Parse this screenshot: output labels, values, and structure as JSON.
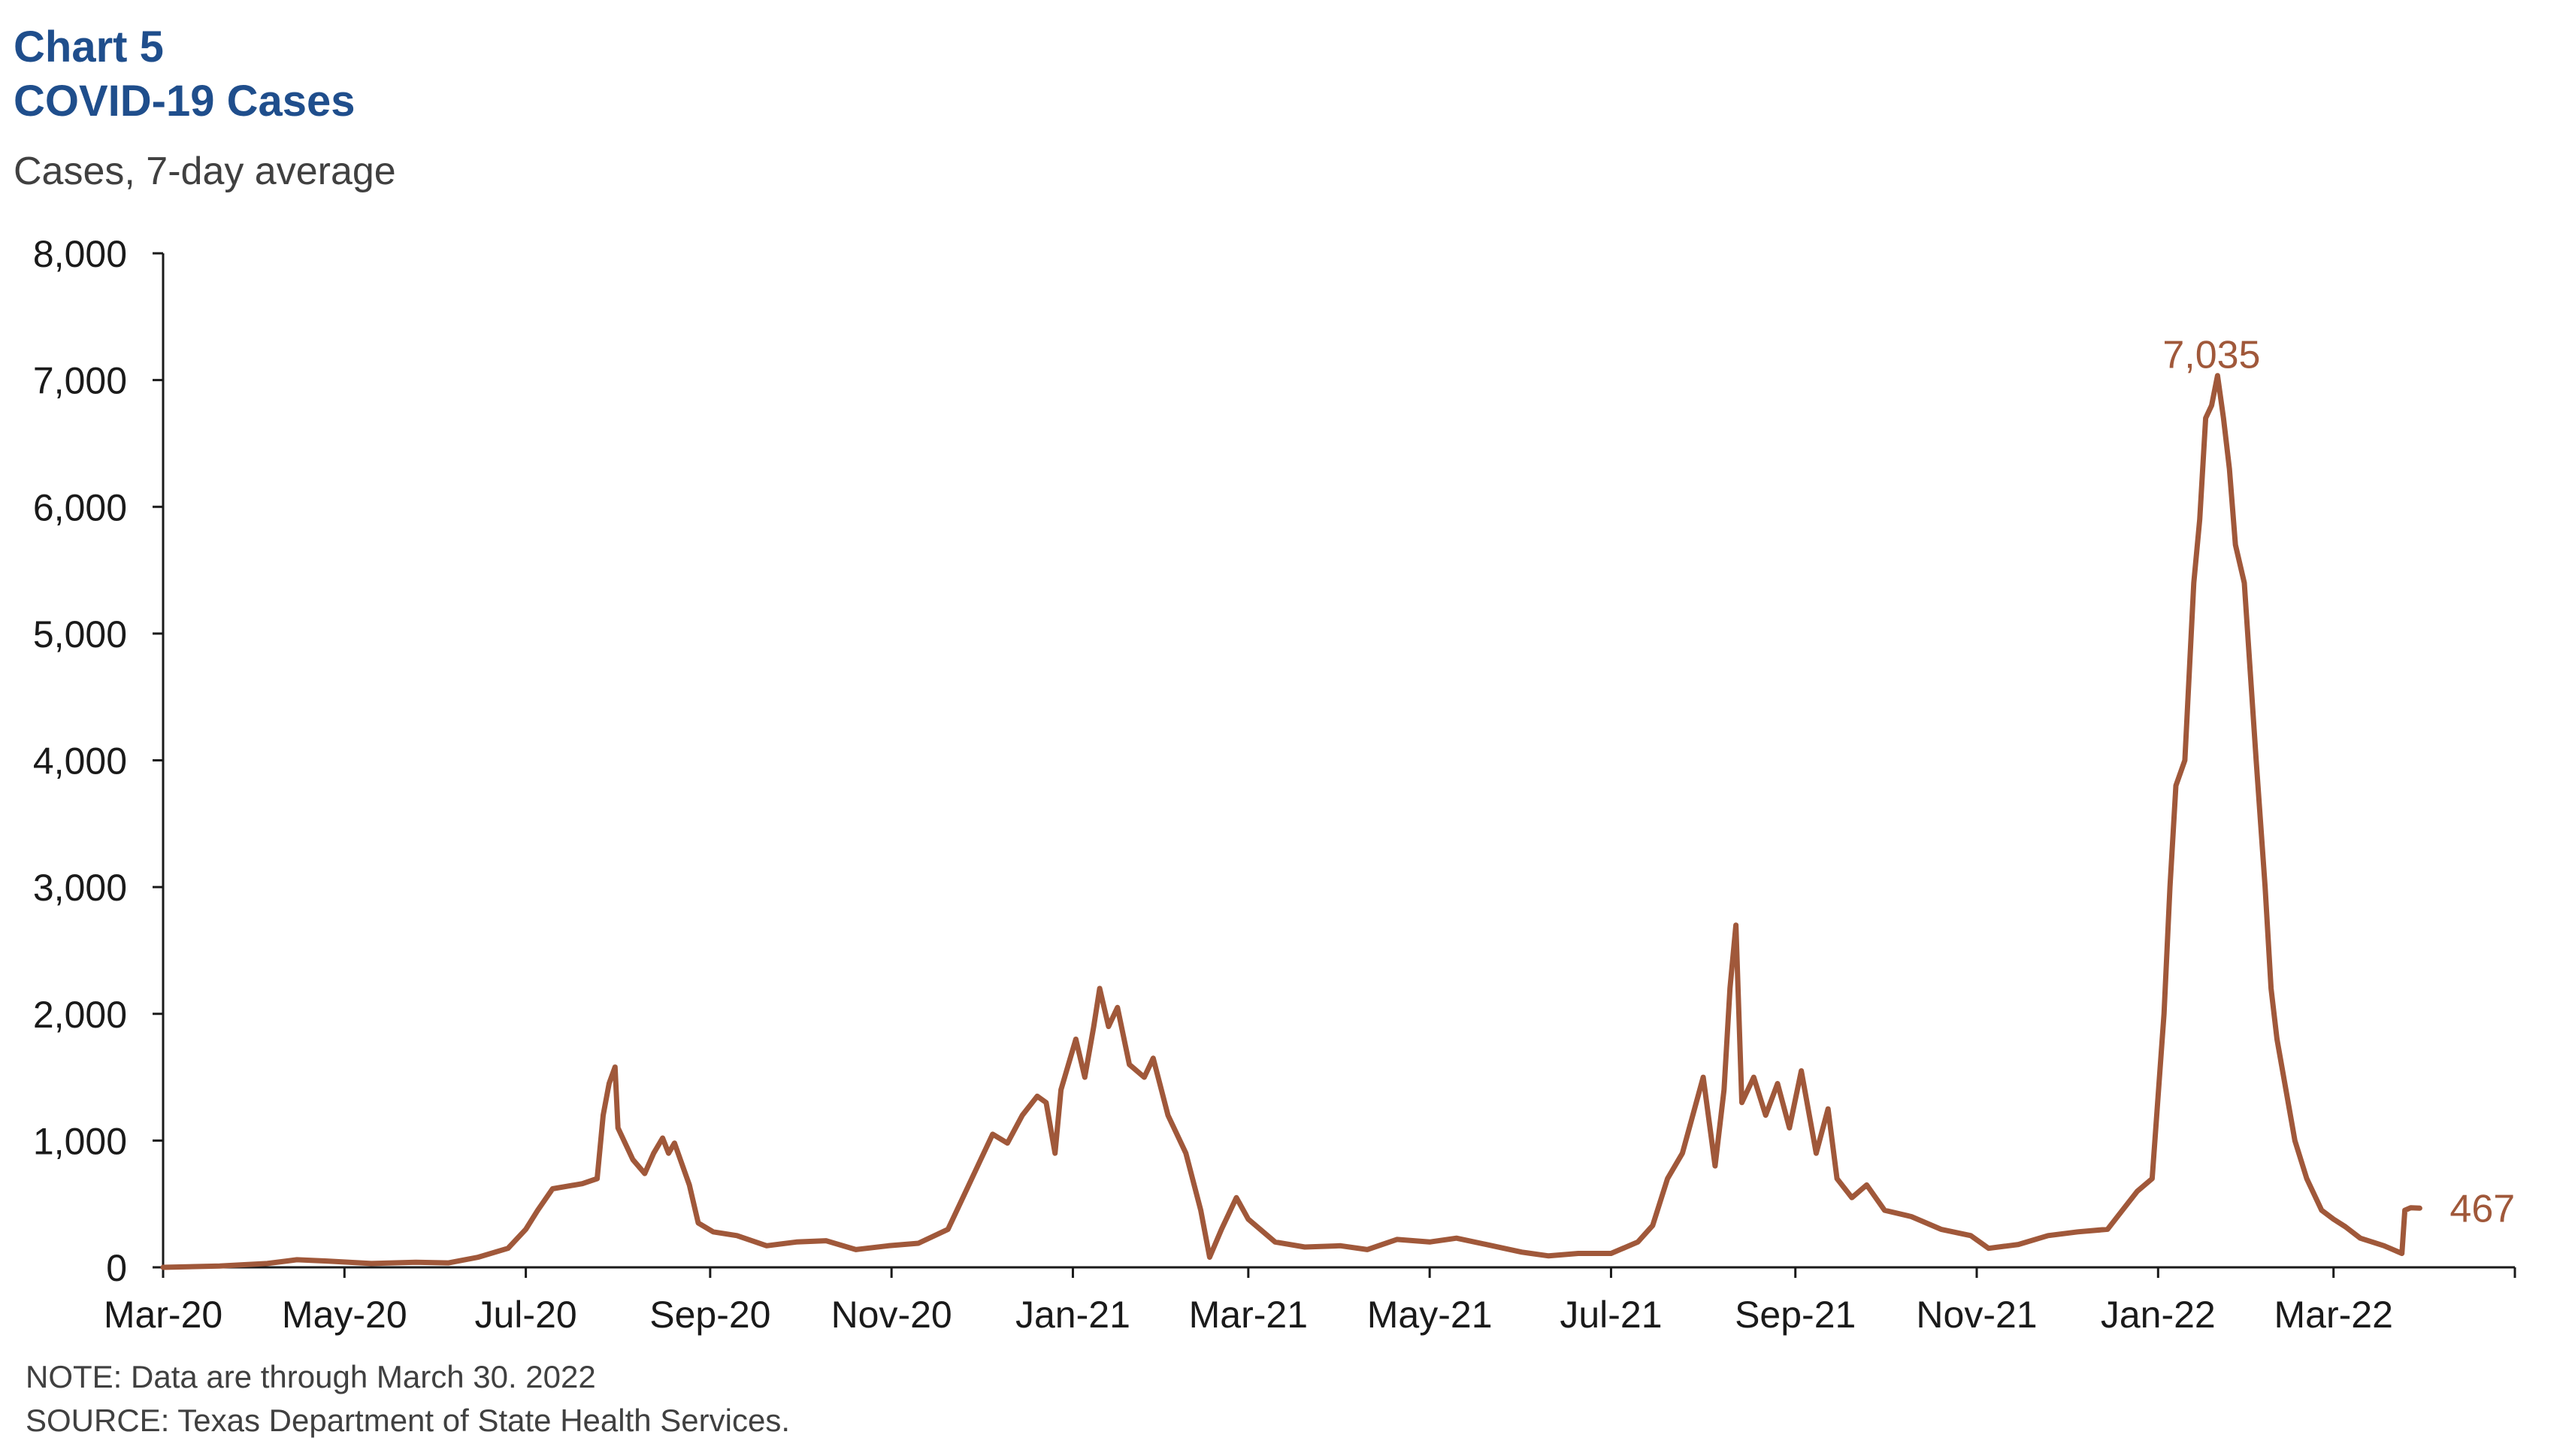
{
  "title_line1": "Chart 5",
  "title_line2": "COVID-19 Cases",
  "unit_label": "Cases, 7-day average",
  "note": "NOTE: Data are through March 30. 2022",
  "source": "SOURCE: Texas Department of State Health Services.",
  "colors": {
    "title": "#1f4e8c",
    "line": "#a0583a",
    "axis": "#1a1a1a"
  },
  "chart_data": {
    "type": "line",
    "ylabel": "Cases, 7-day average",
    "ylim": [
      0,
      8000
    ],
    "yticks": [
      0,
      1000,
      2000,
      3000,
      4000,
      5000,
      6000,
      7000,
      8000
    ],
    "ytick_labels": [
      "0",
      "1,000",
      "2,000",
      "3,000",
      "4,000",
      "5,000",
      "6,000",
      "7,000",
      "8,000"
    ],
    "xlim": [
      "2020-03-01",
      "2022-05-01"
    ],
    "xtick_labels": [
      {
        "date": "2020-03-01",
        "label": "Mar-20"
      },
      {
        "date": "2020-05-01",
        "label": "May-20"
      },
      {
        "date": "2020-07-01",
        "label": "Jul-20"
      },
      {
        "date": "2020-09-01",
        "label": "Sep-20"
      },
      {
        "date": "2020-11-01",
        "label": "Nov-20"
      },
      {
        "date": "2021-01-01",
        "label": "Jan-21"
      },
      {
        "date": "2021-03-01",
        "label": "Mar-21"
      },
      {
        "date": "2021-05-01",
        "label": "May-21"
      },
      {
        "date": "2021-07-01",
        "label": "Jul-21"
      },
      {
        "date": "2021-09-01",
        "label": "Sep-21"
      },
      {
        "date": "2021-11-01",
        "label": "Nov-21"
      },
      {
        "date": "2022-01-01",
        "label": "Jan-22"
      },
      {
        "date": "2022-03-01",
        "label": "Mar-22"
      }
    ],
    "annotations": [
      {
        "text": "7,035",
        "date": "2022-01-21",
        "value": 7035,
        "position": "above"
      },
      {
        "text": "467",
        "date": "2022-03-30",
        "value": 467,
        "position": "right"
      }
    ],
    "series": [
      {
        "values": [
          [
            "2020-03-01",
            0
          ],
          [
            "2020-03-20",
            10
          ],
          [
            "2020-04-05",
            30
          ],
          [
            "2020-04-15",
            60
          ],
          [
            "2020-04-25",
            50
          ],
          [
            "2020-05-10",
            30
          ],
          [
            "2020-05-25",
            40
          ],
          [
            "2020-06-05",
            35
          ],
          [
            "2020-06-15",
            80
          ],
          [
            "2020-06-25",
            150
          ],
          [
            "2020-07-01",
            300
          ],
          [
            "2020-07-05",
            450
          ],
          [
            "2020-07-10",
            620
          ],
          [
            "2020-07-15",
            640
          ],
          [
            "2020-07-20",
            660
          ],
          [
            "2020-07-25",
            700
          ],
          [
            "2020-07-27",
            1200
          ],
          [
            "2020-07-29",
            1450
          ],
          [
            "2020-07-31",
            1580
          ],
          [
            "2020-08-01",
            1100
          ],
          [
            "2020-08-06",
            850
          ],
          [
            "2020-08-10",
            740
          ],
          [
            "2020-08-13",
            900
          ],
          [
            "2020-08-16",
            1020
          ],
          [
            "2020-08-18",
            900
          ],
          [
            "2020-08-20",
            980
          ],
          [
            "2020-08-25",
            650
          ],
          [
            "2020-08-28",
            350
          ],
          [
            "2020-09-02",
            280
          ],
          [
            "2020-09-10",
            250
          ],
          [
            "2020-09-20",
            170
          ],
          [
            "2020-09-30",
            200
          ],
          [
            "2020-10-10",
            210
          ],
          [
            "2020-10-20",
            140
          ],
          [
            "2020-10-31",
            170
          ],
          [
            "2020-11-10",
            190
          ],
          [
            "2020-11-20",
            300
          ],
          [
            "2020-11-25",
            550
          ],
          [
            "2020-12-01",
            850
          ],
          [
            "2020-12-05",
            1050
          ],
          [
            "2020-12-10",
            980
          ],
          [
            "2020-12-15",
            1200
          ],
          [
            "2020-12-20",
            1350
          ],
          [
            "2020-12-23",
            1300
          ],
          [
            "2020-12-26",
            900
          ],
          [
            "2020-12-28",
            1400
          ],
          [
            "2021-01-02",
            1800
          ],
          [
            "2021-01-05",
            1500
          ],
          [
            "2021-01-08",
            1900
          ],
          [
            "2021-01-10",
            2200
          ],
          [
            "2021-01-13",
            1900
          ],
          [
            "2021-01-16",
            2050
          ],
          [
            "2021-01-20",
            1600
          ],
          [
            "2021-01-25",
            1500
          ],
          [
            "2021-01-28",
            1650
          ],
          [
            "2021-02-02",
            1200
          ],
          [
            "2021-02-08",
            900
          ],
          [
            "2021-02-13",
            450
          ],
          [
            "2021-02-16",
            80
          ],
          [
            "2021-02-20",
            300
          ],
          [
            "2021-02-25",
            550
          ],
          [
            "2021-03-01",
            380
          ],
          [
            "2021-03-10",
            200
          ],
          [
            "2021-03-20",
            160
          ],
          [
            "2021-04-01",
            170
          ],
          [
            "2021-04-10",
            140
          ],
          [
            "2021-04-20",
            220
          ],
          [
            "2021-05-01",
            200
          ],
          [
            "2021-05-10",
            230
          ],
          [
            "2021-05-20",
            180
          ],
          [
            "2021-06-01",
            120
          ],
          [
            "2021-06-10",
            90
          ],
          [
            "2021-06-20",
            110
          ],
          [
            "2021-07-01",
            110
          ],
          [
            "2021-07-10",
            200
          ],
          [
            "2021-07-15",
            330
          ],
          [
            "2021-07-20",
            700
          ],
          [
            "2021-07-25",
            900
          ],
          [
            "2021-08-01",
            1500
          ],
          [
            "2021-08-05",
            800
          ],
          [
            "2021-08-08",
            1400
          ],
          [
            "2021-08-10",
            2200
          ],
          [
            "2021-08-12",
            2700
          ],
          [
            "2021-08-14",
            1300
          ],
          [
            "2021-08-18",
            1500
          ],
          [
            "2021-08-22",
            1200
          ],
          [
            "2021-08-26",
            1450
          ],
          [
            "2021-08-30",
            1100
          ],
          [
            "2021-09-03",
            1550
          ],
          [
            "2021-09-08",
            900
          ],
          [
            "2021-09-12",
            1250
          ],
          [
            "2021-09-15",
            700
          ],
          [
            "2021-09-20",
            550
          ],
          [
            "2021-09-25",
            650
          ],
          [
            "2021-10-01",
            450
          ],
          [
            "2021-10-10",
            400
          ],
          [
            "2021-10-20",
            300
          ],
          [
            "2021-10-30",
            250
          ],
          [
            "2021-11-05",
            150
          ],
          [
            "2021-11-15",
            180
          ],
          [
            "2021-11-25",
            250
          ],
          [
            "2021-12-05",
            280
          ],
          [
            "2021-12-15",
            300
          ],
          [
            "2021-12-20",
            450
          ],
          [
            "2021-12-25",
            600
          ],
          [
            "2021-12-30",
            700
          ],
          [
            "2022-01-03",
            2000
          ],
          [
            "2022-01-05",
            3000
          ],
          [
            "2022-01-07",
            3800
          ],
          [
            "2022-01-10",
            4000
          ],
          [
            "2022-01-13",
            5400
          ],
          [
            "2022-01-15",
            5900
          ],
          [
            "2022-01-17",
            6700
          ],
          [
            "2022-01-19",
            6800
          ],
          [
            "2022-01-21",
            7035
          ],
          [
            "2022-01-23",
            6700
          ],
          [
            "2022-01-25",
            6300
          ],
          [
            "2022-01-27",
            5700
          ],
          [
            "2022-01-30",
            5400
          ],
          [
            "2022-02-01",
            4700
          ],
          [
            "2022-02-03",
            4000
          ],
          [
            "2022-02-06",
            3000
          ],
          [
            "2022-02-08",
            2200
          ],
          [
            "2022-02-10",
            1800
          ],
          [
            "2022-02-13",
            1400
          ],
          [
            "2022-02-16",
            1000
          ],
          [
            "2022-02-20",
            700
          ],
          [
            "2022-02-25",
            450
          ],
          [
            "2022-03-01",
            380
          ],
          [
            "2022-03-05",
            320
          ],
          [
            "2022-03-10",
            230
          ],
          [
            "2022-03-18",
            170
          ],
          [
            "2022-03-24",
            110
          ],
          [
            "2022-03-25",
            450
          ],
          [
            "2022-03-27",
            470
          ],
          [
            "2022-03-30",
            467
          ]
        ]
      }
    ]
  }
}
